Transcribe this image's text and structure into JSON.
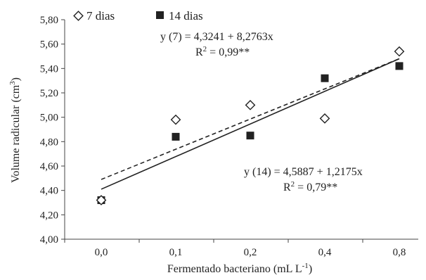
{
  "chart_data": {
    "type": "scatter",
    "categories": [
      "0,0",
      "0,1",
      "0,2",
      "0,4",
      "0,8"
    ],
    "xlabel": "Fermentado bacteriano (mL L",
    "xlabel_sup": "-1",
    "xlabel_suffix": ")",
    "ylabel": "Volume radicular (cm",
    "ylabel_sup": "3",
    "ylabel_suffix": ")",
    "ylim": [
      4.0,
      5.8
    ],
    "yticks": [
      "4,00",
      "4,20",
      "4,40",
      "4,60",
      "4,80",
      "5,00",
      "5,20",
      "5,40",
      "5,60",
      "5,80"
    ],
    "grid": false,
    "legend_position": "top-left",
    "series": [
      {
        "name": "7 dias",
        "marker": "diamond-open",
        "values": [
          4.32,
          4.98,
          5.1,
          4.99,
          5.54
        ],
        "trend": {
          "style": "dashed",
          "start": 4.49,
          "end": 5.48
        },
        "equation": "y (7) = 4,3241 + 8,2763x",
        "r2_prefix": "R",
        "r2_sup": "2",
        "r2_value": " = 0,99**"
      },
      {
        "name": "14 dias",
        "marker": "square-filled",
        "values": [
          4.32,
          4.84,
          4.85,
          5.32,
          5.42
        ],
        "trend": {
          "style": "solid",
          "start": 4.41,
          "end": 5.48
        },
        "equation": "y (14) = 4,5887 + 1,2175x",
        "r2_prefix": "R",
        "r2_sup": "2",
        "r2_value": " = 0,79**"
      }
    ]
  }
}
